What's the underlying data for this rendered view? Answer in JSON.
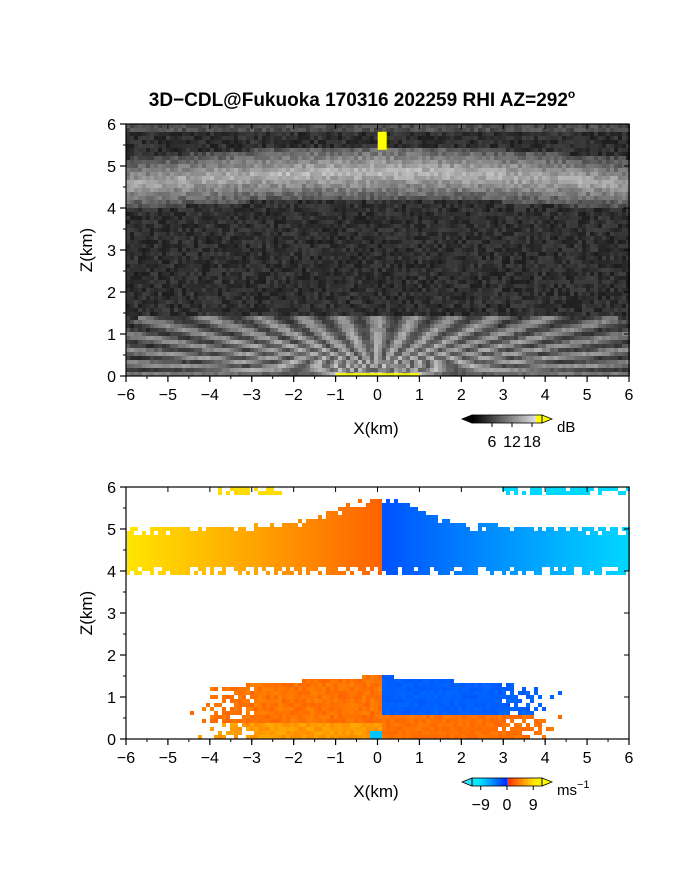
{
  "title": "3D−CDL@Fukuoka 170316 202259 RHI AZ=292",
  "title_superscript": "o",
  "chart_data": [
    {
      "type": "heatmap",
      "quantity": "reflectivity",
      "xlabel": "X(km)",
      "ylabel": "Z(km)",
      "xlim": [
        -6,
        6
      ],
      "ylim": [
        0,
        6
      ],
      "xticks": [
        "−6",
        "−5",
        "−4",
        "−3",
        "−2",
        "−1",
        "0",
        "1",
        "2",
        "3",
        "4",
        "5",
        "6"
      ],
      "yticks": [
        "0",
        "1",
        "2",
        "3",
        "4",
        "5",
        "6"
      ],
      "colorbar": {
        "unit": "dB",
        "ticks": [
          "6",
          "12",
          "18"
        ],
        "range": [
          0,
          21
        ]
      },
      "features": [
        {
          "name": "cloud layer",
          "z_range": [
            4.0,
            5.6
          ],
          "x_range": [
            -6,
            6
          ],
          "level_dB": 10
        },
        {
          "name": "near-ground fan",
          "z_range": [
            0,
            1.4
          ],
          "x_range": [
            -6,
            6
          ],
          "level_dB": 12
        },
        {
          "name": "bright spot",
          "x": 0.1,
          "z": 5.6,
          "level_dB": 21
        }
      ]
    },
    {
      "type": "heatmap",
      "quantity": "doppler velocity",
      "xlabel": "X(km)",
      "ylabel": "Z(km)",
      "xlim": [
        -6,
        6
      ],
      "ylim": [
        0,
        6
      ],
      "xticks": [
        "−6",
        "−5",
        "−4",
        "−3",
        "−2",
        "−1",
        "0",
        "1",
        "2",
        "3",
        "4",
        "5",
        "6"
      ],
      "yticks": [
        "0",
        "1",
        "2",
        "3",
        "4",
        "5",
        "6"
      ],
      "colorbar": {
        "unit": "ms",
        "unit_exponent": "−1",
        "ticks": [
          "−9",
          "0",
          "9"
        ],
        "range": [
          -12,
          12
        ]
      },
      "features": [
        {
          "name": "upper layer west",
          "x_range": [
            -6,
            0.1
          ],
          "z_range": [
            3.9,
            5.8
          ],
          "velocity_ms": [
            9,
            3
          ]
        },
        {
          "name": "upper layer east",
          "x_range": [
            0.1,
            6
          ],
          "z_range": [
            3.9,
            5.6
          ],
          "velocity_ms": [
            -2,
            -9
          ]
        },
        {
          "name": "lower layer west",
          "x_range": [
            -4.5,
            0.1
          ],
          "z_range": [
            0,
            1.5
          ],
          "velocity_ms": [
            6,
            3
          ]
        },
        {
          "name": "lower layer east",
          "x_range": [
            0.1,
            4.5
          ],
          "z_range": [
            0.6,
            1.5
          ],
          "velocity_ms": [
            -2,
            -3
          ]
        },
        {
          "name": "lower layer east base",
          "x_range": [
            0.1,
            4.5
          ],
          "z_range": [
            0,
            0.6
          ],
          "velocity_ms": [
            3,
            3
          ]
        }
      ]
    }
  ],
  "colors": {
    "dark_background": "#1c1c1c",
    "bright": "#ffff00",
    "warm": "#ff2a00",
    "cold": "#0030ff",
    "cyan": "#33e0ff"
  }
}
